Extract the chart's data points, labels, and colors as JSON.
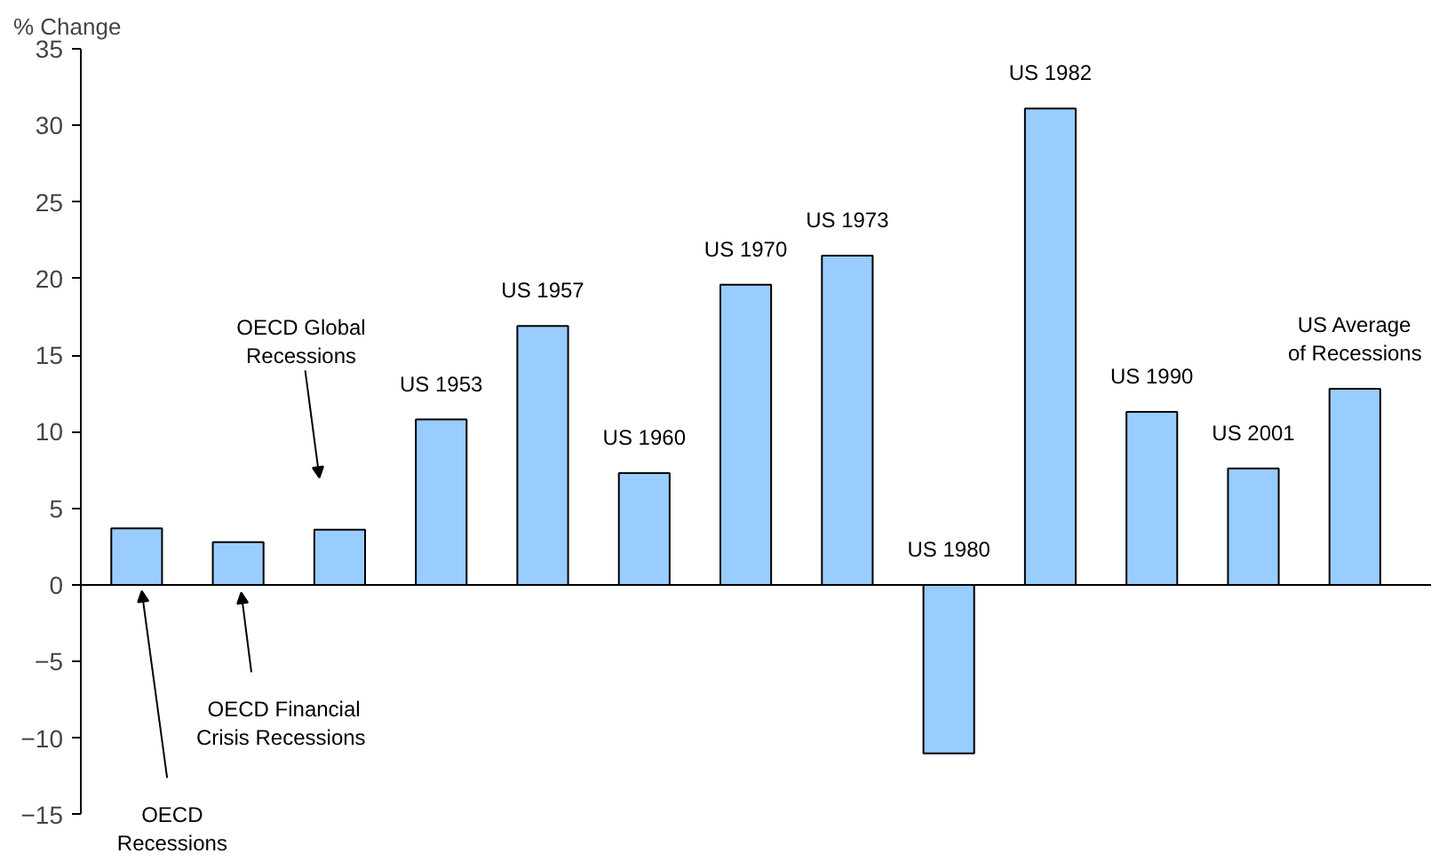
{
  "chart_data": {
    "type": "bar",
    "ylabel": "% Change",
    "categories": [
      "OECD\nRecessions",
      "OECD Financial\nCrisis  Recessions",
      "OECD Global\nRecessions",
      "US 1953",
      "US 1957",
      "US 1960",
      "US 1970",
      "US 1973",
      "US 1980",
      "US 1982",
      "US 1990",
      "US 2001",
      "US Average\nof Recessions"
    ],
    "values": [
      3.7,
      2.8,
      3.6,
      10.8,
      16.9,
      7.3,
      19.6,
      21.5,
      -11.0,
      31.1,
      11.3,
      7.6,
      12.8
    ],
    "color": "#99ccff",
    "ylim": [
      -15,
      35
    ],
    "yticks": [
      -15,
      -10,
      -5,
      0,
      5,
      10,
      15,
      20,
      25,
      30,
      35
    ]
  }
}
